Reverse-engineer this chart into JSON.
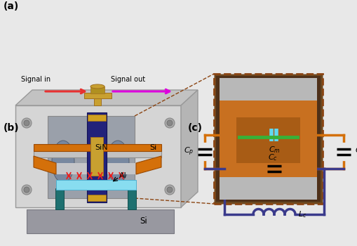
{
  "bg_color": "#e8e8e8",
  "panel_a_label": "(a)",
  "panel_b_label": "(b)",
  "panel_c_label": "(c)",
  "signal_in_text": "Signal in",
  "signal_out_text": "Signal out",
  "sin_text": "SiN",
  "si_text": "Si",
  "al_text": "Al",
  "si_bottom_text": "Si",
  "orange_color": "#d4700a",
  "blue_dark": "#3a3a8c",
  "cyan_color": "#7adce8",
  "signal_in_color": "#e83030",
  "signal_out_color": "#dd00dd",
  "dashed_brown": "#8B4513"
}
